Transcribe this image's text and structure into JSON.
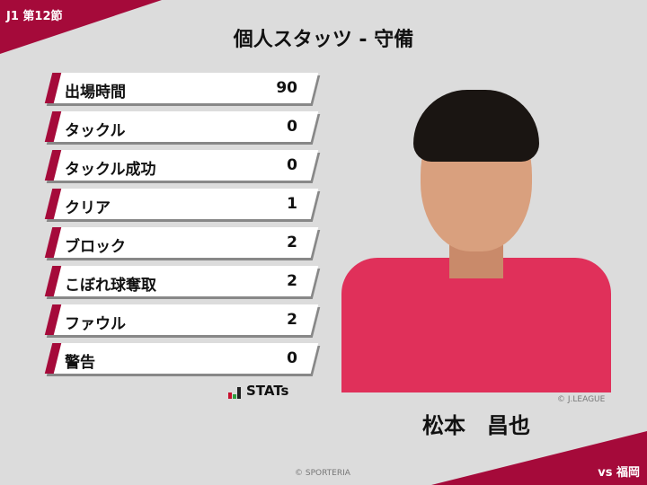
{
  "header": {
    "round": "J1 第12節",
    "title": "個人スタッツ - 守備"
  },
  "stats": [
    {
      "label": "出場時間",
      "value": "90"
    },
    {
      "label": "タックル",
      "value": "0"
    },
    {
      "label": "タックル成功",
      "value": "0"
    },
    {
      "label": "クリア",
      "value": "1"
    },
    {
      "label": "ブロック",
      "value": "2"
    },
    {
      "label": "こぼれ球奪取",
      "value": "2"
    },
    {
      "label": "ファウル",
      "value": "2"
    },
    {
      "label": "警告",
      "value": "0"
    }
  ],
  "brand": {
    "logo_text": "STATs"
  },
  "player": {
    "name": "松本　昌也",
    "photo_credit": "© J.LEAGUE"
  },
  "footer": {
    "copyright": "© SPORTERIA",
    "opponent": "vs 福岡"
  },
  "colors": {
    "accent": "#a50a3a"
  }
}
